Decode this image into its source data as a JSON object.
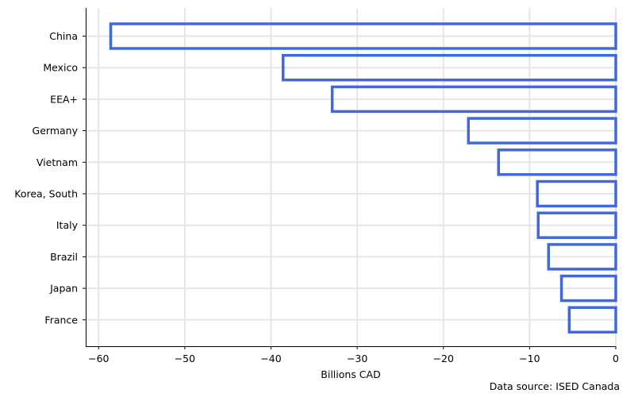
{
  "chart_data": {
    "type": "bar",
    "orientation": "horizontal",
    "categories": [
      "China",
      "Mexico",
      "EEA+",
      "Germany",
      "Vietnam",
      "Korea, South",
      "Italy",
      "Brazil",
      "Japan",
      "France"
    ],
    "values": [
      -58.6,
      -38.6,
      -32.9,
      -17.1,
      -13.6,
      -9.1,
      -9.0,
      -7.8,
      -6.3,
      -5.4
    ],
    "xlabel": "Billions CAD",
    "ylabel": "",
    "xlim": [
      -61.5,
      0
    ],
    "xticks": [
      -60,
      -50,
      -40,
      -30,
      -20,
      -10,
      0
    ],
    "xtick_labels": [
      "−60",
      "−50",
      "−40",
      "−30",
      "−20",
      "−10",
      "0"
    ],
    "grid": true,
    "bar_style": "outline",
    "bar_color": "#4169d9",
    "source": "Data source: ISED Canada"
  }
}
